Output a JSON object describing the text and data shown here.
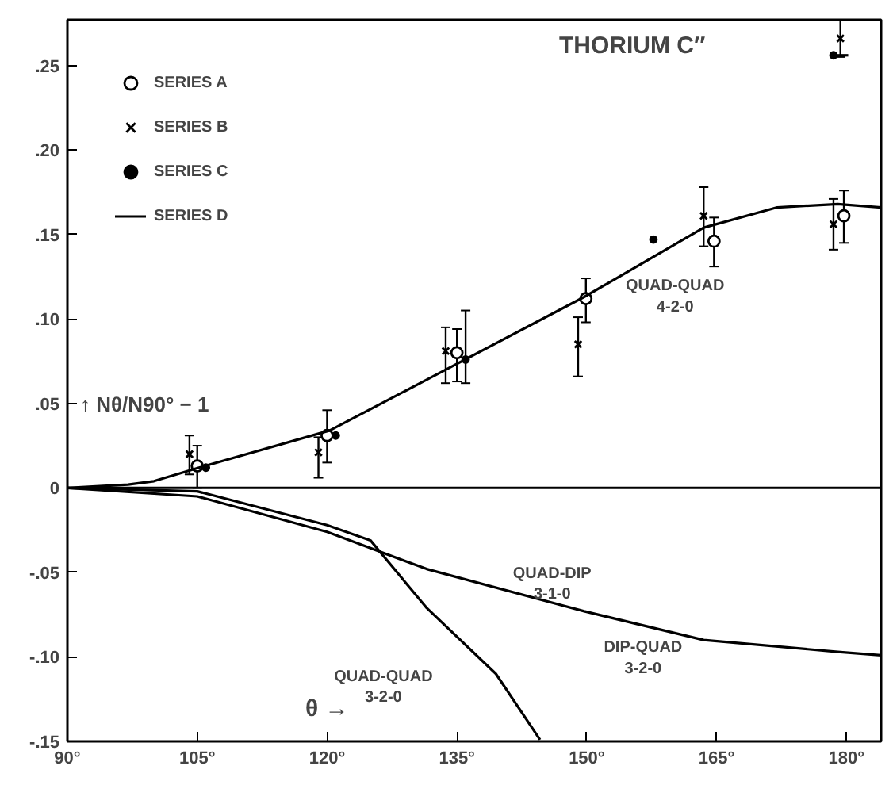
{
  "chart_data": {
    "type": "scatter",
    "title": "THORIUM C″",
    "xlabel": "θ →",
    "ylabel": "↑ Nθ/N90° − 1",
    "xlim": [
      90,
      184
    ],
    "ylim": [
      -0.15,
      0.277
    ],
    "xticks": [
      {
        "value": 90,
        "label": "90°"
      },
      {
        "value": 105,
        "label": "105°"
      },
      {
        "value": 120,
        "label": "120°"
      },
      {
        "value": 135,
        "label": "135°"
      },
      {
        "value": 150,
        "label": "150°"
      },
      {
        "value": 165,
        "label": "165°"
      },
      {
        "value": 180,
        "label": "180°"
      }
    ],
    "yticks": [
      {
        "value": -0.15,
        "label": "-.15"
      },
      {
        "value": -0.1,
        "label": "-.10"
      },
      {
        "value": -0.05,
        "label": "-.05"
      },
      {
        "value": 0,
        "label": "0"
      },
      {
        "value": 0.05,
        "label": ".05"
      },
      {
        "value": 0.1,
        "label": ".10"
      },
      {
        "value": 0.15,
        "label": ".15"
      },
      {
        "value": 0.2,
        "label": ".20"
      },
      {
        "value": 0.25,
        "label": ".25"
      }
    ],
    "grid": false,
    "legend": "top left",
    "series": [
      {
        "name": "SERIES A",
        "marker": "circle",
        "color": "#000000",
        "x": [
          105,
          120,
          135,
          149.9,
          164.7,
          179.7
        ],
        "values": [
          0.013,
          0.031,
          0.08,
          0.112,
          0.146,
          0.161
        ],
        "errors": [
          [
            0,
            0.025
          ],
          [
            0.015,
            0.046
          ],
          [
            0.063,
            0.094
          ],
          [
            0.098,
            0.124
          ],
          [
            0.131,
            0.16
          ],
          [
            0.145,
            0.176
          ]
        ]
      },
      {
        "name": "SERIES B",
        "marker": "cross",
        "color": "#000000",
        "x": [
          104.1,
          119,
          133.7,
          149,
          163.5,
          178.5,
          179.3
        ],
        "values": [
          0.02,
          0.021,
          0.081,
          0.085,
          0.161,
          0.156,
          0.266
        ],
        "errors": [
          [
            0.008,
            0.031
          ],
          [
            0.006,
            0.03
          ],
          [
            0.062,
            0.095
          ],
          [
            0.066,
            0.101
          ],
          [
            0.143,
            0.178
          ],
          [
            0.141,
            0.171
          ],
          [
            0.255,
            0.277
          ]
        ]
      },
      {
        "name": "SERIES C",
        "color": "#000000",
        "x": [
          106,
          121,
          136,
          157.7,
          178.5
        ],
        "values": [
          0.012,
          0.031,
          0.076,
          0.147,
          0.256
        ],
        "errors": [
          null,
          null,
          [
            0.062,
            0.105
          ],
          null,
          null
        ]
      },
      {
        "name": "SERIES D",
        "type": "line",
        "color": "#000000",
        "x": [
          178.8,
          180.2
        ],
        "values": [
          0.256,
          0.256
        ]
      },
      {
        "type": "line",
        "color": "#000000",
        "x": [
          90,
          97,
          100,
          105.2,
          120.3,
          131.5,
          149.7,
          163.5,
          172,
          179,
          184
        ],
        "values": [
          0,
          0.002,
          0.004,
          0.012,
          0.034,
          0.064,
          0.113,
          0.154,
          0.166,
          0.168,
          0.166
        ]
      },
      {
        "type": "line",
        "color": "#000000",
        "x": [
          90,
          105,
          120,
          131.5,
          149.7,
          163.5,
          179,
          184
        ],
        "values": [
          0,
          -0.005,
          -0.026,
          -0.048,
          -0.073,
          -0.09,
          -0.097,
          -0.099
        ]
      },
      {
        "type": "line",
        "color": "#000000",
        "x": [
          90,
          105,
          120,
          125,
          131.5,
          139.5,
          144.6
        ],
        "values": [
          0,
          -0.002,
          -0.022,
          -0.031,
          -0.071,
          -0.11,
          -0.149
        ]
      }
    ],
    "ref_lines": [
      {
        "axis": "y",
        "value": 0,
        "color": "#000000"
      }
    ],
    "annotations": [
      "QUAD-QUAD\n4-2-0",
      "QUAD-DIP\n3-1-0",
      "DIP-QUAD\n3-2-0",
      "QUAD-QUAD\n3-2-0"
    ]
  }
}
